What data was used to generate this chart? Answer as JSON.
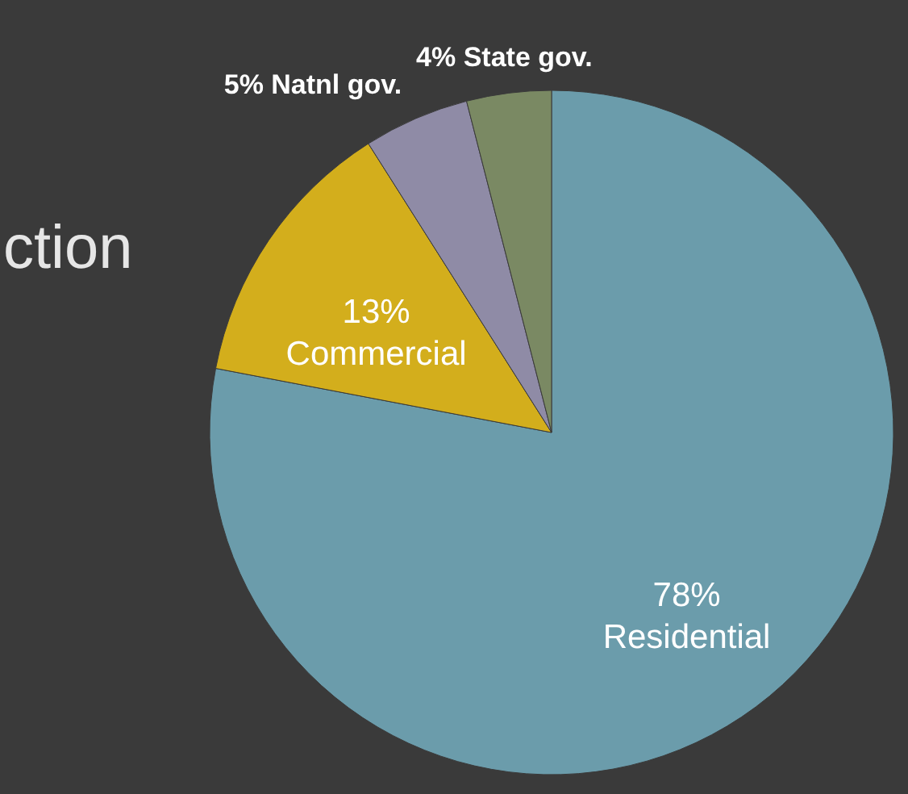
{
  "chart_data": {
    "type": "pie",
    "annotations": [
      "ction"
    ],
    "categories": [
      "Residential",
      "Commercial",
      "Natnl gov.",
      "State gov."
    ],
    "values": [
      78,
      13,
      5,
      4
    ],
    "value_labels": [
      "78%",
      "13%",
      "5%",
      "4%"
    ],
    "colors": [
      "#6b9cab",
      "#d3ae1c",
      "#8f8ba6",
      "#7a8963"
    ],
    "legend": false
  }
}
